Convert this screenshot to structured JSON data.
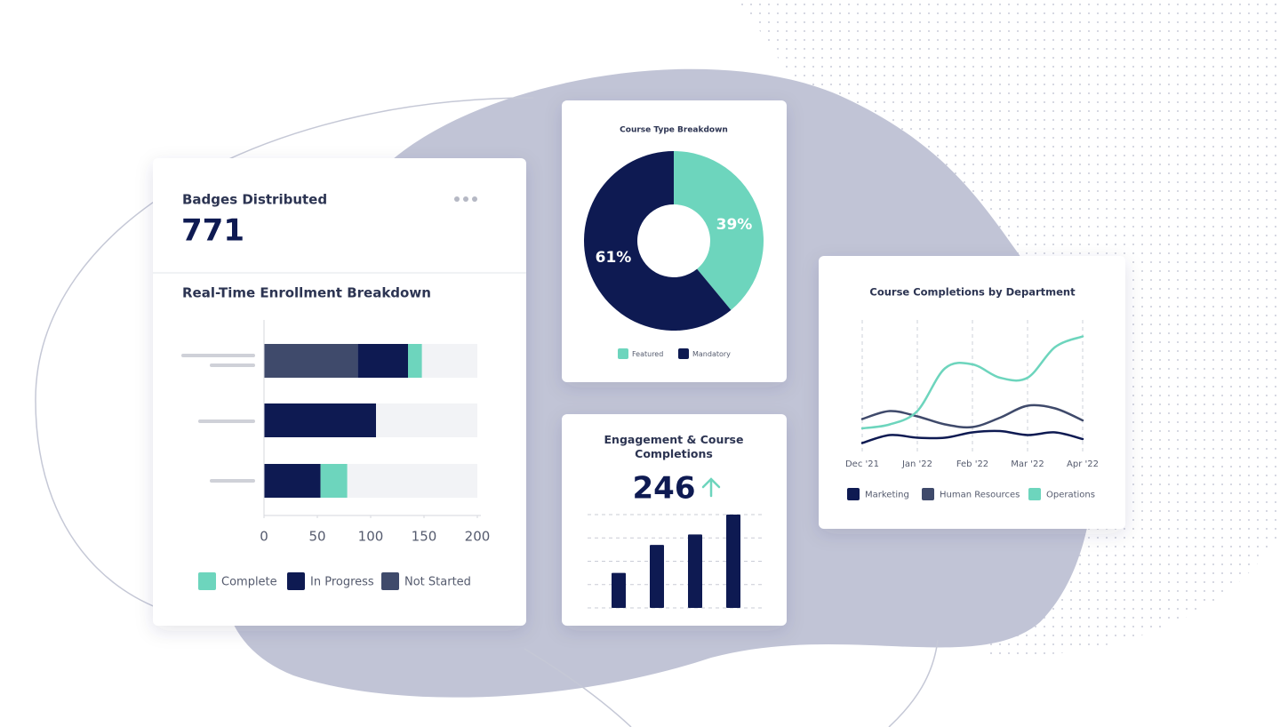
{
  "chart_data": [
    {
      "type": "hbar-stacked",
      "kpi_label": "Badges Distributed",
      "kpi_value": 771,
      "title": "Real-Time Enrollment Breakdown",
      "categories": [
        null,
        null,
        null
      ],
      "series": [
        {
          "name": "Complete",
          "color": "#6dd5bd",
          "values": [
            13,
            null,
            25
          ]
        },
        {
          "name": "In Progress",
          "color": "#0e1a52",
          "values": [
            47,
            105,
            53
          ]
        },
        {
          "name": "Not Started",
          "color": "#3f4a6b",
          "values": [
            88,
            null,
            null
          ]
        }
      ],
      "xlim": [
        0,
        200
      ],
      "xticks": [
        0,
        50,
        100,
        150,
        200
      ]
    },
    {
      "type": "pie",
      "title": "Course Type Breakdown",
      "categories": [
        "Featured",
        "Mandatory"
      ],
      "values": [
        39,
        61
      ],
      "value_labels": [
        "39%",
        "61%"
      ],
      "colors": [
        "#6dd5bd",
        "#0e1a52"
      ]
    },
    {
      "type": "bar",
      "title": "Engagement & Course Completions",
      "kpi_value": 246,
      "categories": [
        null,
        null,
        null,
        null
      ],
      "values": [
        1.5,
        2.7,
        3.15,
        4
      ],
      "color": "#0e1a52",
      "ylim": [
        0,
        4
      ],
      "yticks": [
        0,
        1,
        2,
        3,
        4
      ],
      "grid": true
    },
    {
      "type": "line",
      "title": "Course Completions by Department",
      "categories": [
        "Dec '21",
        null,
        "Jan '22",
        null,
        "Feb '22",
        null,
        "Mar '22",
        null,
        "Apr '22"
      ],
      "series": [
        {
          "name": "Marketing",
          "color": "#0e1a52",
          "values": [
            1.1,
            1.7,
            1.5,
            1.5,
            1.9,
            2,
            1.7,
            1.9,
            1.4
          ]
        },
        {
          "name": "Human Resources",
          "color": "#3f4a6b",
          "values": [
            2.9,
            3.5,
            3.1,
            2.5,
            2.3,
            3,
            3.9,
            3.7,
            2.8
          ]
        },
        {
          "name": "Operations",
          "color": "#6dd5bd",
          "values": [
            2.2,
            2.5,
            3.5,
            6.7,
            7,
            6,
            6,
            8.3,
            9.1
          ]
        }
      ],
      "ylim": [
        0,
        10
      ]
    }
  ]
}
